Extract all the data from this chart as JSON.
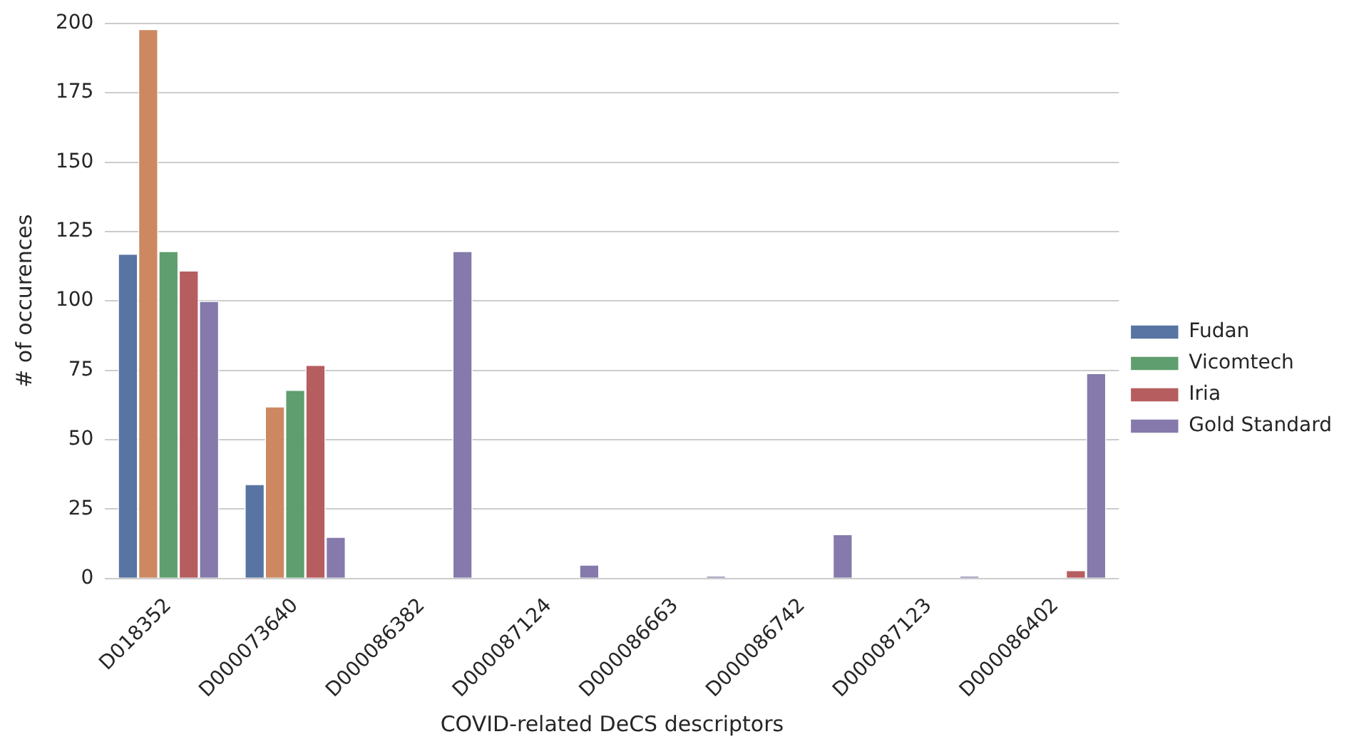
{
  "chart_data": {
    "type": "bar",
    "xlabel": "COVID-related DeCS descriptors",
    "ylabel": "# of occurences",
    "categories": [
      "D018352",
      "D000073640",
      "D000086382",
      "D000087124",
      "D000086663",
      "D000086742",
      "D000087123",
      "D000086402"
    ],
    "series": [
      {
        "name": "Fudan",
        "color": "#5874a2",
        "values": [
          117,
          34,
          0,
          0,
          0,
          0,
          0,
          0
        ]
      },
      {
        "color": "#cd8862",
        "values": [
          198,
          62,
          0,
          0,
          0,
          0,
          0,
          0
        ]
      },
      {
        "name": "Vicomtech",
        "color": "#5f9e6e",
        "values": [
          118,
          68,
          0,
          0,
          0,
          0,
          0,
          0
        ]
      },
      {
        "name": "Iria",
        "color": "#b65d60",
        "values": [
          111,
          77,
          0,
          0,
          0,
          0,
          0,
          3
        ]
      },
      {
        "name": "Gold Standard",
        "color": "#857aab",
        "values": [
          100,
          15,
          118,
          5,
          1,
          16,
          1,
          74
        ]
      }
    ],
    "ylim": [
      0,
      200
    ],
    "yticks": [
      0,
      25,
      50,
      75,
      100,
      125,
      150,
      175,
      200
    ],
    "grid": "y",
    "legend": "right"
  }
}
